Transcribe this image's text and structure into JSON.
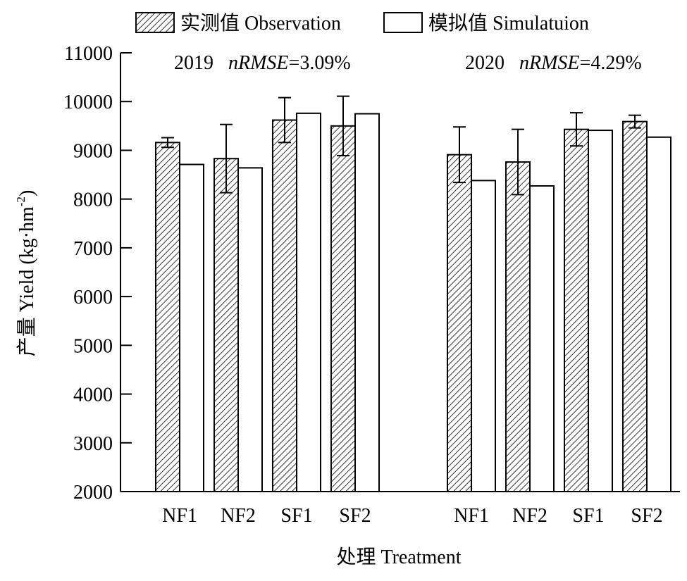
{
  "chart_data": {
    "type": "bar",
    "legend": {
      "placement": "top",
      "items": [
        {
          "label": "实测值 Observation",
          "pattern": "hatched"
        },
        {
          "label": "模拟值 Simulatuion",
          "pattern": "plain"
        }
      ]
    },
    "ylabel_cn": "产量 Yield",
    "ylabel_unit": "(kg·hm",
    "ylabel_sup": "-2",
    "ylabel_close": ")",
    "xlabel": "处理 Treatment",
    "ylim": [
      2000,
      11000
    ],
    "yticks": [
      "2000",
      "3000",
      "4000",
      "5000",
      "6000",
      "7000",
      "8000",
      "9000",
      "10000",
      "11000"
    ],
    "grid": false,
    "groups": [
      {
        "year": "2019",
        "metric": "nRMSE",
        "value": "=3.09%",
        "categories": [
          "NF1",
          "NF2",
          "SF1",
          "SF2"
        ],
        "series": [
          {
            "name": "实测值 Observation",
            "values": [
              9160,
              8830,
              9620,
              9500
            ],
            "errors": [
              100,
              700,
              460,
              610
            ]
          },
          {
            "name": "模拟值 Simulatuion",
            "values": [
              8710,
              8640,
              9760,
              9750
            ]
          }
        ]
      },
      {
        "year": "2020",
        "metric": "nRMSE",
        "value": "=4.29%",
        "categories": [
          "NF1",
          "NF2",
          "SF1",
          "SF2"
        ],
        "series": [
          {
            "name": "实测值 Observation",
            "values": [
              8910,
              8760,
              9430,
              9590
            ],
            "errors": [
              570,
              670,
              340,
              130
            ]
          },
          {
            "name": "模拟值 Simulatuion",
            "values": [
              8380,
              8270,
              9410,
              9270
            ]
          }
        ]
      }
    ]
  },
  "colors": {
    "bar_fill": "#ffffff",
    "hatch": "#000000",
    "axis": "#000000"
  }
}
